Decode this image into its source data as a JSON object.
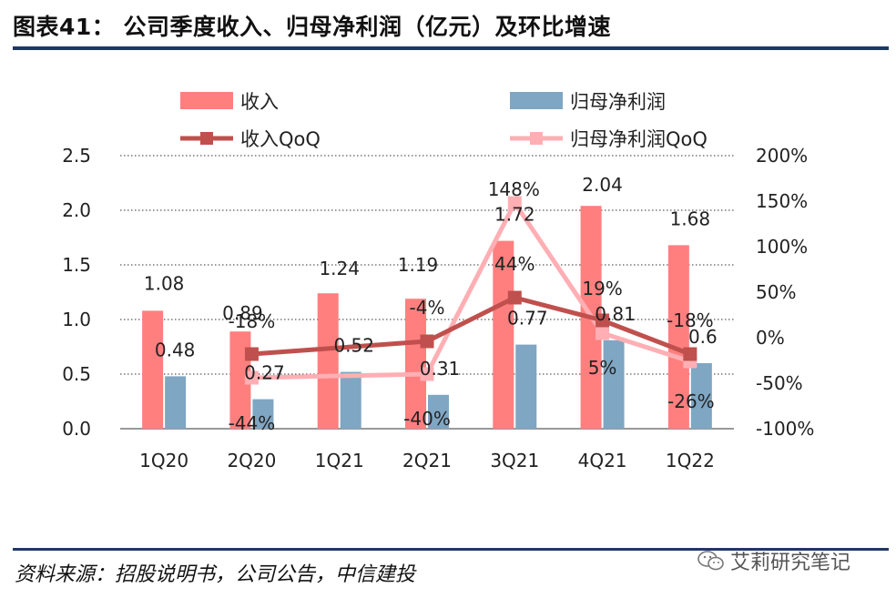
{
  "header": {
    "title": "图表41：  公司季度收入、归母净利润（亿元）及环比增速"
  },
  "footer": {
    "source": "资料来源：招股说明书，公司公告，中信建投",
    "watermark": "艾莉研究笔记"
  },
  "colors": {
    "revenue_bar": "#FF7F7F",
    "profit_bar": "#7FA6C3",
    "revenue_qoq": "#C0504D",
    "profit_qoq": "#FFAFB4",
    "rule": "#1F3864"
  },
  "chart_data": {
    "type": "bar",
    "categories": [
      "1Q20",
      "2Q20",
      "1Q21",
      "2Q21",
      "3Q21",
      "4Q21",
      "1Q22"
    ],
    "series": [
      {
        "name": "收入",
        "type": "bar",
        "axis": "left",
        "values": [
          1.08,
          0.89,
          1.24,
          1.19,
          1.72,
          2.04,
          1.68
        ],
        "labels": [
          "1.08",
          "0.89",
          "1.24",
          "1.19",
          "1.72",
          "2.04",
          "1.68"
        ]
      },
      {
        "name": "归母净利润",
        "type": "bar",
        "axis": "left",
        "values": [
          0.48,
          0.27,
          0.52,
          0.31,
          0.77,
          0.81,
          0.6
        ],
        "labels": [
          "0.48",
          "0.27",
          "0.52",
          "0.31",
          "0.77",
          "0.81",
          "0.6"
        ]
      },
      {
        "name": "收入QoQ",
        "type": "line",
        "axis": "right",
        "values": [
          null,
          -18,
          null,
          -4,
          44,
          19,
          -18
        ],
        "labels": [
          null,
          "-18%",
          null,
          "-4%",
          "44%",
          "19%",
          "-18%"
        ]
      },
      {
        "name": "归母净利润QoQ",
        "type": "line",
        "axis": "right",
        "values": [
          null,
          -44,
          null,
          -40,
          148,
          5,
          -26
        ],
        "labels": [
          null,
          "-44%",
          null,
          "-40%",
          "148%",
          "5%",
          "-26%"
        ]
      }
    ],
    "y_left": {
      "range": [
        0,
        2.5
      ],
      "ticks": [
        "0.0",
        "0.5",
        "1.0",
        "1.5",
        "2.0",
        "2.5"
      ]
    },
    "y_right": {
      "range": [
        -100,
        200
      ],
      "ticks": [
        "-100%",
        "-50%",
        "0%",
        "50%",
        "100%",
        "150%",
        "200%"
      ]
    },
    "legend": [
      "收入",
      "归母净利润",
      "收入QoQ",
      "归母净利润QoQ"
    ],
    "legend_position": "top",
    "grid": "horizontal dotted"
  }
}
